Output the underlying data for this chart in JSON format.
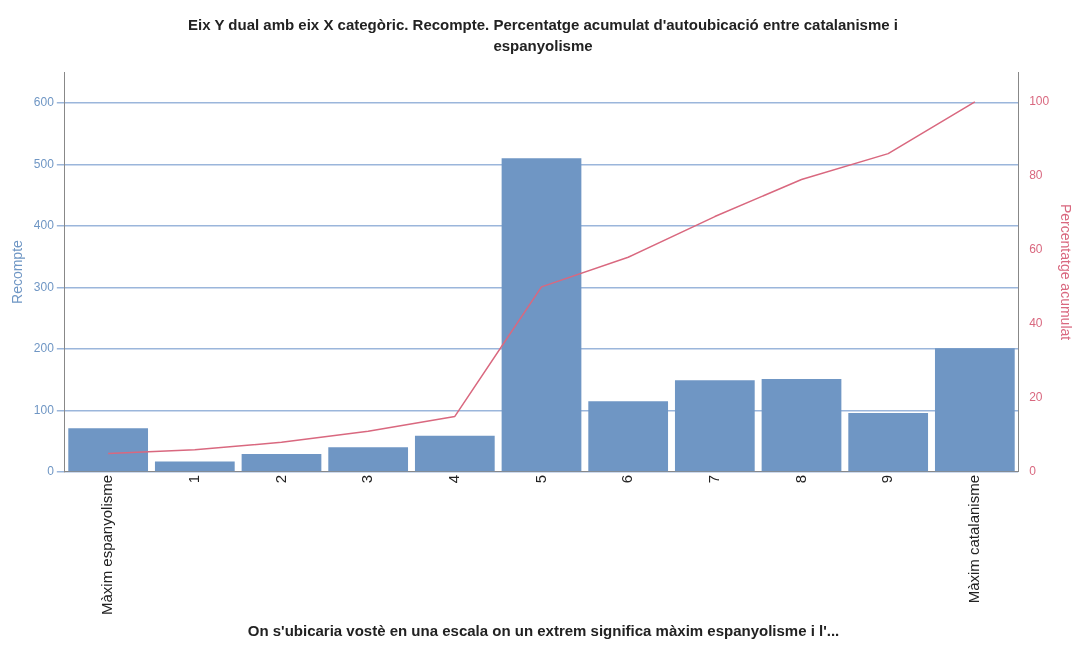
{
  "chart_data": {
    "type": "bar",
    "title": "Eix Y dual amb eix X categòric. Recompte. Percentatge acumulat d'autoubicació entre catalanisme i espanyolisme",
    "xlabel": "On s'ubicaria vostè en una escala on un extrem significa màxim espanyolisme i l'...",
    "ylabel": "Recompte",
    "y2label": "Percentatge acumulat",
    "categories": [
      "Màxim espanyolisme",
      "1",
      "2",
      "3",
      "4",
      "5",
      "6",
      "7",
      "8",
      "9",
      "Màxim catalanisme"
    ],
    "series": [
      {
        "color": "#6f96c4",
        "values": [
          71,
          17,
          29,
          40,
          59,
          510,
          115,
          149,
          151,
          96,
          201
        ]
      },
      {
        "type": "line",
        "axis": "y2",
        "color": "#d9687f",
        "marker": "none",
        "values": [
          5,
          6,
          8,
          11,
          15,
          50,
          58,
          69,
          79,
          86,
          100
        ]
      }
    ],
    "ylim": [
      0,
      650
    ],
    "yticks": [
      0,
      100,
      200,
      300,
      400,
      500,
      600
    ],
    "y2lim": [
      0,
      108
    ],
    "y2ticks": [
      0,
      20,
      40,
      60,
      80,
      100
    ],
    "grid": "y",
    "legend": false
  }
}
